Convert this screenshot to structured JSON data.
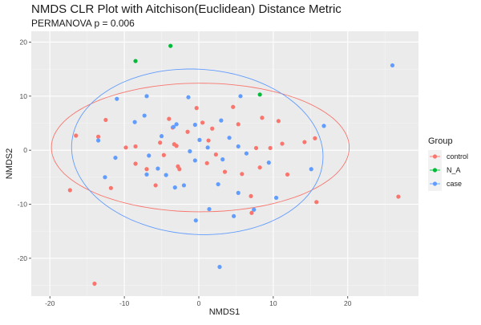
{
  "chart_data": {
    "type": "scatter",
    "title": "NMDS CLR Plot with Aitchison(Euclidean) Distance Metric",
    "subtitle": "PERMANOVA p = 0.006",
    "xlabel": "NMDS1",
    "ylabel": "NMDS2",
    "xlim": [
      -22.5,
      29.5
    ],
    "ylim": [
      -27,
      22
    ],
    "xticks": [
      -20,
      -10,
      0,
      10,
      20
    ],
    "yticks": [
      -20,
      -10,
      0,
      10,
      20
    ],
    "grid": true,
    "legend_position": "right",
    "legend_title": "Group",
    "series": [
      {
        "name": "control",
        "color": "#F8766D",
        "points": [
          [
            -17.3,
            -7.4
          ],
          [
            -16.5,
            2.7
          ],
          [
            -14.0,
            -24.7
          ],
          [
            -13.5,
            2.5
          ],
          [
            -12.5,
            5.6
          ],
          [
            -11.8,
            -7.0
          ],
          [
            -9.8,
            0.5
          ],
          [
            -8.5,
            0.7
          ],
          [
            -8.5,
            -2.5
          ],
          [
            -7.0,
            -3.5
          ],
          [
            -5.8,
            -6.5
          ],
          [
            -5.2,
            1.4
          ],
          [
            -4.7,
            -0.9
          ],
          [
            -4.0,
            5.8
          ],
          [
            -3.5,
            4.2
          ],
          [
            -3.3,
            1.1
          ],
          [
            -2.8,
            -3.0
          ],
          [
            -2.6,
            -3.5
          ],
          [
            -1.5,
            3.4
          ],
          [
            -0.3,
            7.8
          ],
          [
            0.5,
            5.1
          ],
          [
            1.1,
            -2.4
          ],
          [
            1.3,
            1.8
          ],
          [
            1.8,
            4.0
          ],
          [
            2.3,
            -0.8
          ],
          [
            3.5,
            -4.0
          ],
          [
            4.6,
            8.0
          ],
          [
            5.3,
            4.8
          ],
          [
            5.8,
            -4.4
          ],
          [
            7.0,
            -8.5
          ],
          [
            7.1,
            -11.6
          ],
          [
            7.7,
            0.4
          ],
          [
            8.2,
            -3.2
          ],
          [
            8.5,
            6.0
          ],
          [
            10.7,
            5.4
          ],
          [
            11.2,
            1.2
          ],
          [
            11.9,
            -4.5
          ],
          [
            14.2,
            1.5
          ],
          [
            15.6,
            2.2
          ],
          [
            15.8,
            -9.6
          ],
          [
            26.8,
            -8.6
          ],
          [
            9.6,
            0.4
          ],
          [
            -3.0,
            0.8
          ]
        ]
      },
      {
        "name": "N_A",
        "color": "#00BA38",
        "points": [
          [
            -8.5,
            16.5
          ],
          [
            -3.8,
            19.3
          ],
          [
            8.2,
            10.3
          ]
        ]
      },
      {
        "name": "case",
        "color": "#619CFF",
        "points": [
          [
            -13.5,
            1.8
          ],
          [
            -12.6,
            -5.0
          ],
          [
            -11.2,
            -1.4
          ],
          [
            -11.0,
            9.5
          ],
          [
            -8.6,
            5.2
          ],
          [
            -7.0,
            10.0
          ],
          [
            -7.3,
            6.4
          ],
          [
            -7.0,
            -4.5
          ],
          [
            -6.7,
            -1.0
          ],
          [
            -5.5,
            -3.4
          ],
          [
            -5.0,
            2.6
          ],
          [
            -4.4,
            -4.6
          ],
          [
            -3.4,
            4.3
          ],
          [
            -3.2,
            -6.9
          ],
          [
            -3.0,
            4.8
          ],
          [
            -2.0,
            -6.5
          ],
          [
            -1.4,
            9.8
          ],
          [
            -1.2,
            -0.2
          ],
          [
            -0.5,
            -1.9
          ],
          [
            -0.5,
            4.7
          ],
          [
            -0.4,
            -13.0
          ],
          [
            0.1,
            1.9
          ],
          [
            1.2,
            0.5
          ],
          [
            1.4,
            -10.9
          ],
          [
            2.6,
            -6.3
          ],
          [
            2.8,
            -21.6
          ],
          [
            3.0,
            5.5
          ],
          [
            3.2,
            -1.7
          ],
          [
            4.1,
            2.3
          ],
          [
            4.7,
            -12.2
          ],
          [
            5.3,
            0.7
          ],
          [
            5.3,
            -7.9
          ],
          [
            5.6,
            10.0
          ],
          [
            6.4,
            -0.6
          ],
          [
            7.4,
            -11.0
          ],
          [
            9.4,
            -2.3
          ],
          [
            10.4,
            -8.8
          ],
          [
            15.1,
            -3.5
          ],
          [
            16.8,
            4.5
          ],
          [
            26.0,
            15.7
          ]
        ]
      }
    ],
    "ellipses": [
      {
        "group": "control",
        "cx": 0.2,
        "cy": 0.5,
        "rx": 20.0,
        "ry": 11.9,
        "angle": 0
      },
      {
        "group": "case",
        "cx": -0.2,
        "cy": -0.3,
        "rx": 17.0,
        "ry": 15.2,
        "angle": -15
      }
    ]
  }
}
